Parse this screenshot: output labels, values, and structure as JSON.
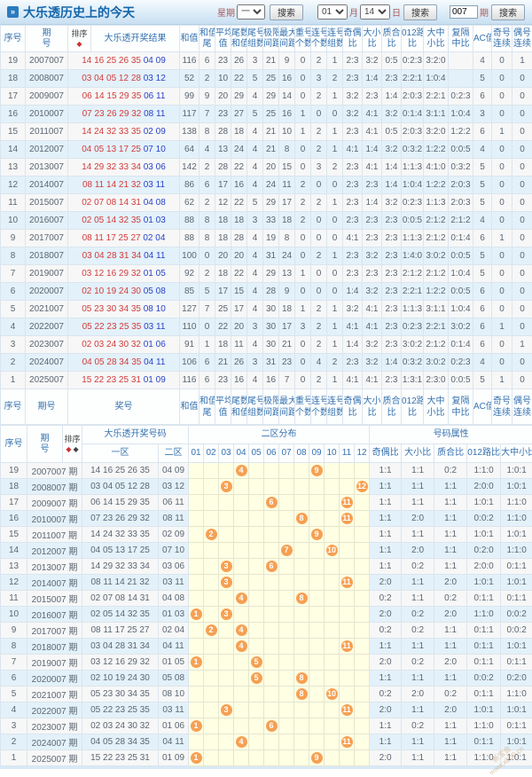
{
  "title": "大乐透历史上的今天",
  "controls": {
    "week_label": "星期",
    "week_value": "一",
    "search_label": "搜索",
    "month_value": "01",
    "month_label": "月",
    "day_value": "14",
    "day_label": "日",
    "issue_value": "007",
    "issue_label": "期"
  },
  "colors": {
    "front_number": "#d23c3c",
    "back_number": "#2742cc",
    "ball": "#f6a053",
    "header_text": "#3572b0",
    "row_alt": "#e3f1fa",
    "ball_grid_bg": "#ffffe3",
    "title_text": "#1566ac"
  },
  "table1": {
    "header": [
      {
        "t": "序号"
      },
      {
        "t": "期",
        "b": "号"
      },
      {
        "t": "排序",
        "diamonds": [
          "#cc3333"
        ]
      },
      {
        "t": "大乐透开奖结果"
      },
      {
        "t": "和值"
      },
      {
        "t": "和值",
        "b": "尾"
      },
      {
        "t": "平均",
        "b": "值"
      },
      {
        "t": "尾数",
        "b": "和值"
      },
      {
        "t": "尾号",
        "b": "组数"
      },
      {
        "t": "极限",
        "b": "间距"
      },
      {
        "t": "最大",
        "b": "间距"
      },
      {
        "t": "重号",
        "b": "个数"
      },
      {
        "t": "连号",
        "b": "个数"
      },
      {
        "t": "连号",
        "b": "组数"
      },
      {
        "t": "奇偶",
        "b": "比"
      },
      {
        "t": "大小",
        "b": "比"
      },
      {
        "t": "质合",
        "b": "比"
      },
      {
        "t": "012路",
        "b": "比"
      },
      {
        "t": "大中",
        "b": "小比"
      },
      {
        "t": "复隔",
        "b": "中比"
      },
      {
        "t": "AC值"
      },
      {
        "t": "奇号",
        "b": "连续"
      },
      {
        "t": "偶号",
        "b": "连续"
      }
    ],
    "footer_header": [
      {
        "t": "序号"
      },
      {
        "t": "期号"
      },
      {
        "t": "奖号",
        "cs": 2
      },
      {
        "t": "和值"
      },
      {
        "t": "和值",
        "b": "尾"
      },
      {
        "t": "平均",
        "b": "值"
      },
      {
        "t": "尾数",
        "b": "和值"
      },
      {
        "t": "尾号",
        "b": "组数"
      },
      {
        "t": "极限",
        "b": "间距"
      },
      {
        "t": "最大",
        "b": "间距"
      },
      {
        "t": "重号",
        "b": "个数"
      },
      {
        "t": "连号",
        "b": "个数"
      },
      {
        "t": "连号",
        "b": "组数"
      },
      {
        "t": "奇偶",
        "b": "比"
      },
      {
        "t": "大小",
        "b": "比"
      },
      {
        "t": "质合",
        "b": "比"
      },
      {
        "t": "012路",
        "b": "比"
      },
      {
        "t": "大中",
        "b": "小比"
      },
      {
        "t": "复隔",
        "b": "中比"
      },
      {
        "t": "AC值"
      },
      {
        "t": "奇号",
        "b": "连续"
      },
      {
        "t": "偶号",
        "b": "连续"
      }
    ],
    "rows": [
      {
        "seq": "19",
        "issue": "2007007",
        "front": "14 16 25 26 35",
        "back": "04 09",
        "stats": [
          "116",
          "6",
          "23",
          "26",
          "3",
          "21",
          "9",
          "0",
          "2",
          "1",
          "2:3",
          "3:2",
          "0:5",
          "0:2:3",
          "3:2:0",
          "",
          "4",
          "0",
          "1"
        ]
      },
      {
        "seq": "18",
        "issue": "2008007",
        "front": "03 04 05 12 28",
        "back": "03 12",
        "stats": [
          "52",
          "2",
          "10",
          "22",
          "5",
          "25",
          "16",
          "0",
          "3",
          "2",
          "2:3",
          "1:4",
          "2:3",
          "2:2:1",
          "1:0:4",
          "",
          "5",
          "0",
          "0"
        ]
      },
      {
        "seq": "17",
        "issue": "2009007",
        "front": "06 14 15 29 35",
        "back": "06 11",
        "stats": [
          "99",
          "9",
          "20",
          "29",
          "4",
          "29",
          "14",
          "0",
          "2",
          "1",
          "3:2",
          "2:3",
          "1:4",
          "2:0:3",
          "2:2:1",
          "0:2:3",
          "6",
          "0",
          "0"
        ]
      },
      {
        "seq": "16",
        "issue": "2010007",
        "front": "07 23 26 29 32",
        "back": "08 11",
        "stats": [
          "117",
          "7",
          "23",
          "27",
          "5",
          "25",
          "16",
          "1",
          "0",
          "0",
          "3:2",
          "4:1",
          "3:2",
          "0:1:4",
          "3:1:1",
          "1:0:4",
          "3",
          "0",
          "0"
        ]
      },
      {
        "seq": "15",
        "issue": "2011007",
        "front": "14 24 32 33 35",
        "back": "02 09",
        "stats": [
          "138",
          "8",
          "28",
          "18",
          "4",
          "21",
          "10",
          "1",
          "2",
          "1",
          "2:3",
          "4:1",
          "0:5",
          "2:0:3",
          "3:2:0",
          "1:2:2",
          "6",
          "1",
          "0"
        ]
      },
      {
        "seq": "14",
        "issue": "2012007",
        "front": "04 05 13 17 25",
        "back": "07 10",
        "stats": [
          "64",
          "4",
          "13",
          "24",
          "4",
          "21",
          "8",
          "0",
          "2",
          "1",
          "4:1",
          "1:4",
          "3:2",
          "0:3:2",
          "1:2:2",
          "0:0:5",
          "4",
          "0",
          "0"
        ]
      },
      {
        "seq": "13",
        "issue": "2013007",
        "front": "14 29 32 33 34",
        "back": "03 06",
        "stats": [
          "142",
          "2",
          "28",
          "22",
          "4",
          "20",
          "15",
          "0",
          "3",
          "2",
          "2:3",
          "4:1",
          "1:4",
          "1:1:3",
          "4:1:0",
          "0:3:2",
          "5",
          "0",
          "0"
        ]
      },
      {
        "seq": "12",
        "issue": "2014007",
        "front": "08 11 14 21 32",
        "back": "03 11",
        "stats": [
          "86",
          "6",
          "17",
          "16",
          "4",
          "24",
          "11",
          "2",
          "0",
          "0",
          "2:3",
          "2:3",
          "1:4",
          "1:0:4",
          "1:2:2",
          "2:0:3",
          "5",
          "0",
          "0"
        ]
      },
      {
        "seq": "11",
        "issue": "2015007",
        "front": "02 07 08 14 31",
        "back": "04 08",
        "stats": [
          "62",
          "2",
          "12",
          "22",
          "5",
          "29",
          "17",
          "2",
          "2",
          "1",
          "2:3",
          "1:4",
          "3:2",
          "0:2:3",
          "1:1:3",
          "2:0:3",
          "5",
          "0",
          "0"
        ]
      },
      {
        "seq": "10",
        "issue": "2016007",
        "front": "02 05 14 32 35",
        "back": "01 03",
        "stats": [
          "88",
          "8",
          "18",
          "18",
          "3",
          "33",
          "18",
          "2",
          "0",
          "0",
          "2:3",
          "2:3",
          "2:3",
          "0:0:5",
          "2:1:2",
          "2:1:2",
          "4",
          "0",
          "0"
        ]
      },
      {
        "seq": "9",
        "issue": "2017007",
        "front": "08 11 17 25 27",
        "back": "02 04",
        "stats": [
          "88",
          "8",
          "18",
          "28",
          "4",
          "19",
          "8",
          "0",
          "0",
          "0",
          "4:1",
          "2:3",
          "2:3",
          "1:1:3",
          "2:1:2",
          "0:1:4",
          "6",
          "1",
          "0"
        ]
      },
      {
        "seq": "8",
        "issue": "2018007",
        "front": "03 04 28 31 34",
        "back": "04 11",
        "stats": [
          "100",
          "0",
          "20",
          "20",
          "4",
          "31",
          "24",
          "0",
          "2",
          "1",
          "2:3",
          "3:2",
          "2:3",
          "1:4:0",
          "3:0:2",
          "0:0:5",
          "5",
          "0",
          "0"
        ]
      },
      {
        "seq": "7",
        "issue": "2019007",
        "front": "03 12 16 29 32",
        "back": "01 05",
        "stats": [
          "92",
          "2",
          "18",
          "22",
          "4",
          "29",
          "13",
          "1",
          "0",
          "0",
          "2:3",
          "2:3",
          "2:3",
          "2:1:2",
          "2:1:2",
          "1:0:4",
          "5",
          "0",
          "0"
        ]
      },
      {
        "seq": "6",
        "issue": "2020007",
        "front": "02 10 19 24 30",
        "back": "05 08",
        "stats": [
          "85",
          "5",
          "17",
          "15",
          "4",
          "28",
          "9",
          "0",
          "0",
          "0",
          "1:4",
          "3:2",
          "2:3",
          "2:2:1",
          "1:2:2",
          "0:0:5",
          "6",
          "0",
          "0"
        ]
      },
      {
        "seq": "5",
        "issue": "2021007",
        "front": "05 23 30 34 35",
        "back": "08 10",
        "stats": [
          "127",
          "7",
          "25",
          "17",
          "4",
          "30",
          "18",
          "1",
          "2",
          "1",
          "3:2",
          "4:1",
          "2:3",
          "1:1:3",
          "3:1:1",
          "1:0:4",
          "6",
          "0",
          "0"
        ]
      },
      {
        "seq": "4",
        "issue": "2022007",
        "front": "05 22 23 25 35",
        "back": "03 11",
        "stats": [
          "110",
          "0",
          "22",
          "20",
          "3",
          "30",
          "17",
          "3",
          "2",
          "1",
          "4:1",
          "4:1",
          "2:3",
          "0:2:3",
          "2:2:1",
          "3:0:2",
          "6",
          "1",
          "0"
        ]
      },
      {
        "seq": "3",
        "issue": "2023007",
        "front": "02 03 24 30 32",
        "back": "01 06",
        "stats": [
          "91",
          "1",
          "18",
          "11",
          "4",
          "30",
          "21",
          "0",
          "2",
          "1",
          "1:4",
          "3:2",
          "2:3",
          "3:0:2",
          "2:1:2",
          "0:1:4",
          "6",
          "0",
          "1"
        ]
      },
      {
        "seq": "2",
        "issue": "2024007",
        "front": "04 05 28 34 35",
        "back": "04 11",
        "stats": [
          "106",
          "6",
          "21",
          "26",
          "3",
          "31",
          "23",
          "0",
          "4",
          "2",
          "2:3",
          "3:2",
          "1:4",
          "0:3:2",
          "3:0:2",
          "0:2:3",
          "4",
          "0",
          "0"
        ]
      },
      {
        "seq": "1",
        "issue": "2025007",
        "front": "15 22 23 25 31",
        "back": "01 09",
        "stats": [
          "116",
          "6",
          "23",
          "16",
          "4",
          "16",
          "7",
          "0",
          "2",
          "1",
          "4:1",
          "4:1",
          "2:3",
          "1:3:1",
          "2:3:0",
          "0:0:5",
          "5",
          "1",
          "0"
        ]
      }
    ]
  },
  "table2": {
    "header_row1": [
      {
        "t": "序号",
        "rs": 2
      },
      {
        "t": "期",
        "b": "号",
        "rs": 2
      },
      {
        "t": "排序",
        "diamonds": [
          "#cc3333",
          "#444444"
        ],
        "rs": 2
      },
      {
        "t": "大乐透开奖号码",
        "cs": 2
      },
      {
        "t": "二区分布",
        "cs": 12
      },
      {
        "t": "号码属性",
        "cs": 5
      }
    ],
    "header_row2": [
      {
        "t": "一区"
      },
      {
        "t": "二区"
      },
      {
        "t": "01"
      },
      {
        "t": "02"
      },
      {
        "t": "03"
      },
      {
        "t": "04"
      },
      {
        "t": "05"
      },
      {
        "t": "06"
      },
      {
        "t": "07"
      },
      {
        "t": "08"
      },
      {
        "t": "09"
      },
      {
        "t": "10"
      },
      {
        "t": "11"
      },
      {
        "t": "12"
      },
      {
        "t": "奇偶比"
      },
      {
        "t": "大小比"
      },
      {
        "t": "质合比"
      },
      {
        "t": "012路比"
      },
      {
        "t": "大中小比"
      }
    ],
    "rows": [
      {
        "seq": "19",
        "issue": "2007007 期",
        "front": "14 16 25 26 35",
        "back": "04 09",
        "balls": [
          4,
          9
        ],
        "attrs": [
          "1:1",
          "1:1",
          "0:2",
          "1:1:0",
          "1:0:1"
        ]
      },
      {
        "seq": "18",
        "issue": "2008007 期",
        "front": "03 04 05 12 28",
        "back": "03 12",
        "balls": [
          3,
          12
        ],
        "attrs": [
          "1:1",
          "1:1",
          "1:1",
          "2:0:0",
          "1:0:1"
        ]
      },
      {
        "seq": "17",
        "issue": "2009007 期",
        "front": "06 14 15 29 35",
        "back": "06 11",
        "balls": [
          6,
          11
        ],
        "attrs": [
          "1:1",
          "1:1",
          "1:1",
          "1:0:1",
          "1:1:0"
        ]
      },
      {
        "seq": "16",
        "issue": "2010007 期",
        "front": "07 23 26 29 32",
        "back": "08 11",
        "balls": [
          8,
          11
        ],
        "attrs": [
          "1:1",
          "2:0",
          "1:1",
          "0:0:2",
          "1:1:0"
        ]
      },
      {
        "seq": "15",
        "issue": "2011007 期",
        "front": "14 24 32 33 35",
        "back": "02 09",
        "balls": [
          2,
          9
        ],
        "attrs": [
          "1:1",
          "1:1",
          "1:1",
          "1:0:1",
          "1:0:1"
        ]
      },
      {
        "seq": "14",
        "issue": "2012007 期",
        "front": "04 05 13 17 25",
        "back": "07 10",
        "balls": [
          7,
          10
        ],
        "attrs": [
          "1:1",
          "2:0",
          "1:1",
          "0:2:0",
          "1:1:0"
        ]
      },
      {
        "seq": "13",
        "issue": "2013007 期",
        "front": "14 29 32 33 34",
        "back": "03 06",
        "balls": [
          3,
          6
        ],
        "attrs": [
          "1:1",
          "0:2",
          "1:1",
          "2:0:0",
          "0:1:1"
        ]
      },
      {
        "seq": "12",
        "issue": "2014007 期",
        "front": "08 11 14 21 32",
        "back": "03 11",
        "balls": [
          3,
          11
        ],
        "attrs": [
          "2:0",
          "1:1",
          "2:0",
          "1:0:1",
          "1:0:1"
        ]
      },
      {
        "seq": "11",
        "issue": "2015007 期",
        "front": "02 07 08 14 31",
        "back": "04 08",
        "balls": [
          4,
          8
        ],
        "attrs": [
          "0:2",
          "1:1",
          "0:2",
          "0:1:1",
          "0:1:1"
        ]
      },
      {
        "seq": "10",
        "issue": "2016007 期",
        "front": "02 05 14 32 35",
        "back": "01 03",
        "balls": [
          1,
          3
        ],
        "attrs": [
          "2:0",
          "0:2",
          "2:0",
          "1:1:0",
          "0:0:2"
        ]
      },
      {
        "seq": "9",
        "issue": "2017007 期",
        "front": "08 11 17 25 27",
        "back": "02 04",
        "balls": [
          2,
          4
        ],
        "attrs": [
          "0:2",
          "0:2",
          "1:1",
          "0:1:1",
          "0:0:2"
        ]
      },
      {
        "seq": "8",
        "issue": "2018007 期",
        "front": "03 04 28 31 34",
        "back": "04 11",
        "balls": [
          4,
          11
        ],
        "attrs": [
          "1:1",
          "1:1",
          "1:1",
          "0:1:1",
          "1:0:1"
        ]
      },
      {
        "seq": "7",
        "issue": "2019007 期",
        "front": "03 12 16 29 32",
        "back": "01 05",
        "balls": [
          1,
          5
        ],
        "attrs": [
          "2:0",
          "0:2",
          "2:0",
          "0:1:1",
          "0:1:1"
        ]
      },
      {
        "seq": "6",
        "issue": "2020007 期",
        "front": "02 10 19 24 30",
        "back": "05 08",
        "balls": [
          5,
          8
        ],
        "attrs": [
          "1:1",
          "1:1",
          "1:1",
          "0:0:2",
          "0:2:0"
        ]
      },
      {
        "seq": "5",
        "issue": "2021007 期",
        "front": "05 23 30 34 35",
        "back": "08 10",
        "balls": [
          8,
          10
        ],
        "attrs": [
          "0:2",
          "2:0",
          "0:2",
          "0:1:1",
          "1:1:0"
        ]
      },
      {
        "seq": "4",
        "issue": "2022007 期",
        "front": "05 22 23 25 35",
        "back": "03 11",
        "balls": [
          3,
          11
        ],
        "attrs": [
          "2:0",
          "1:1",
          "2:0",
          "1:0:1",
          "1:0:1"
        ]
      },
      {
        "seq": "3",
        "issue": "2023007 期",
        "front": "02 03 24 30 32",
        "back": "01 06",
        "balls": [
          1,
          6
        ],
        "attrs": [
          "1:1",
          "0:2",
          "1:1",
          "1:1:0",
          "0:1:1"
        ]
      },
      {
        "seq": "2",
        "issue": "2024007 期",
        "front": "04 05 28 34 35",
        "back": "04 11",
        "balls": [
          4,
          11
        ],
        "attrs": [
          "1:1",
          "1:1",
          "1:1",
          "0:1:1",
          "1:0:1"
        ]
      },
      {
        "seq": "1",
        "issue": "2025007 期",
        "front": "15 22 23 25 31",
        "back": "01 09",
        "balls": [
          1,
          9
        ],
        "attrs": [
          "2:0",
          "1:1",
          "1:1",
          "1:1:0",
          "1:0:1"
        ]
      }
    ]
  },
  "watermark": {
    "line1": "新宝会",
    "line2": "www.xb00.cn"
  }
}
